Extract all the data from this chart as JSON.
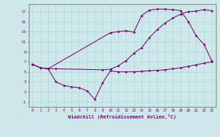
{
  "xlabel": "Windchill (Refroidissement éolien,°C)",
  "background_color": "#cce8e8",
  "line_color": "#800080",
  "xlim": [
    -0.5,
    23.5
  ],
  "ylim": [
    -2,
    18.5
  ],
  "xticks": [
    0,
    1,
    2,
    3,
    4,
    5,
    6,
    7,
    8,
    9,
    10,
    11,
    12,
    13,
    14,
    15,
    16,
    17,
    18,
    19,
    20,
    21,
    22,
    23
  ],
  "yticks": [
    -1,
    1,
    3,
    5,
    7,
    9,
    11,
    13,
    15,
    17
  ],
  "line1_x": [
    0,
    1,
    2,
    3,
    4,
    5,
    6,
    7,
    8,
    9,
    10,
    11,
    12,
    13,
    14,
    15,
    16,
    17,
    18,
    19,
    20,
    21,
    22,
    23
  ],
  "line1_y": [
    6.5,
    5.8,
    5.6,
    3.0,
    2.3,
    2.0,
    1.8,
    1.2,
    -0.5,
    2.8,
    5.2,
    5.0,
    5.0,
    5.0,
    5.1,
    5.2,
    5.3,
    5.4,
    5.6,
    5.8,
    6.1,
    6.4,
    6.7,
    7.0
  ],
  "line2_x": [
    0,
    1,
    2,
    10,
    11,
    12,
    13,
    14,
    15,
    16,
    17,
    18,
    19,
    20,
    21,
    22,
    23
  ],
  "line2_y": [
    6.5,
    5.8,
    5.6,
    12.8,
    13.0,
    13.2,
    12.9,
    16.2,
    17.3,
    17.5,
    17.5,
    17.4,
    17.2,
    15.0,
    12.2,
    10.5,
    7.2
  ],
  "line3_x": [
    0,
    1,
    2,
    3,
    9,
    10,
    11,
    12,
    13,
    14,
    15,
    16,
    17,
    18,
    19,
    20,
    21,
    22,
    23
  ],
  "line3_y": [
    6.5,
    5.8,
    5.6,
    5.6,
    5.4,
    5.5,
    6.2,
    7.2,
    8.7,
    9.8,
    11.8,
    13.4,
    14.7,
    15.7,
    16.5,
    17.0,
    17.1,
    17.4,
    17.2
  ]
}
